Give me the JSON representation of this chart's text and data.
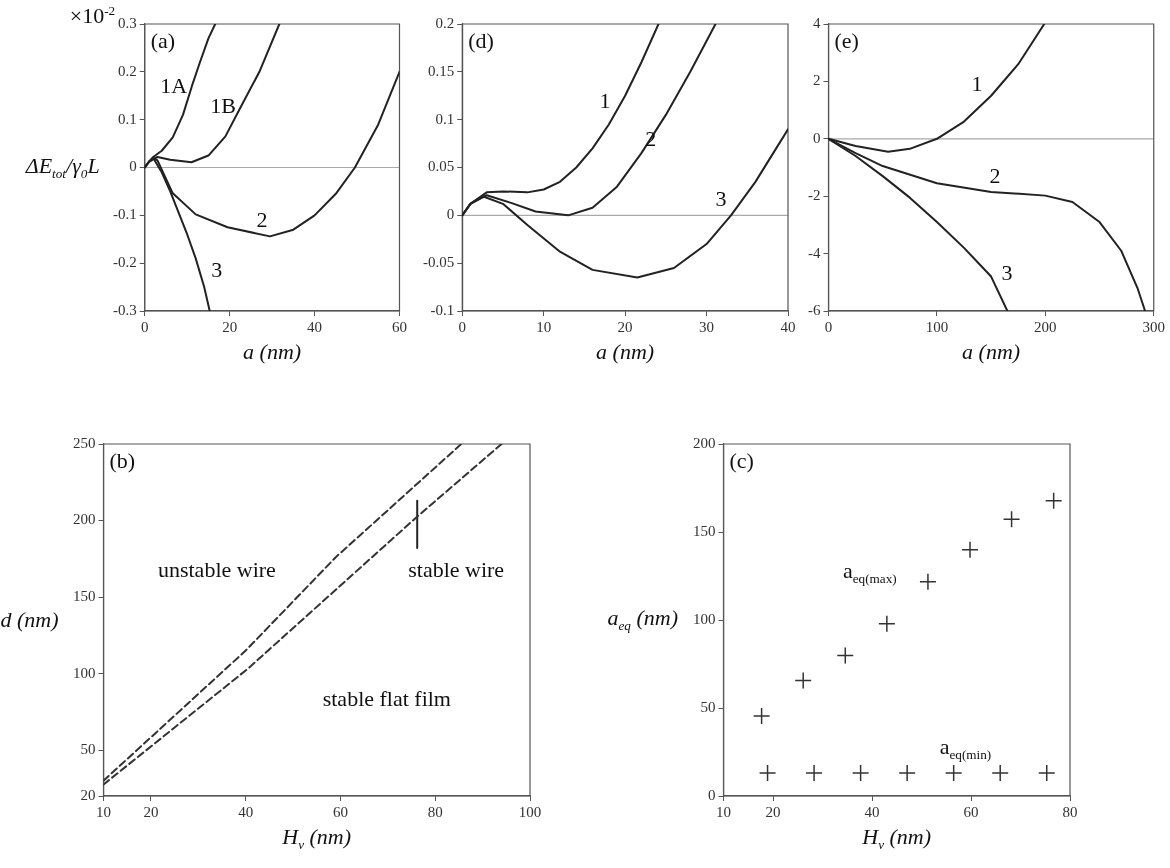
{
  "chart_data": [
    {
      "type": "line",
      "xlabel": "a (nm)",
      "ylabel": "ΔE$_{tot}$/γ$_{0}$L",
      "marker": "none",
      "xlim": [
        0,
        60
      ],
      "ylim": [
        -0.3,
        0.3
      ],
      "xticks": [
        0,
        20,
        40,
        60
      ],
      "yticks": [
        -0.3,
        -0.2,
        -0.1,
        0,
        0.1,
        0.2,
        0.3
      ],
      "series": [
        {
          "name": "1A",
          "color": "#222222",
          "x": [
            0,
            1,
            2,
            4,
            6.6,
            9,
            11.1,
            13,
            15,
            16.6
          ],
          "values": [
            0,
            0.012,
            0.022,
            0.035,
            0.063,
            0.11,
            0.17,
            0.22,
            0.27,
            0.3
          ]
        },
        {
          "name": "1B",
          "color": "#222222",
          "x": [
            0,
            1,
            3,
            6,
            11,
            15,
            19,
            22.7,
            27,
            31.7
          ],
          "values": [
            0,
            0.012,
            0.022,
            0.016,
            0.011,
            0.025,
            0.065,
            0.128,
            0.2,
            0.3
          ]
        },
        {
          "name": "2",
          "color": "#222222",
          "x": [
            0,
            1,
            2,
            3,
            6.6,
            12,
            19.5,
            29.5,
            35,
            40,
            45,
            49.5,
            55,
            60
          ],
          "values": [
            0,
            0.012,
            0.02,
            0.015,
            -0.054,
            -0.098,
            -0.125,
            -0.144,
            -0.13,
            -0.1,
            -0.055,
            0,
            0.09,
            0.2
          ]
        },
        {
          "name": "3",
          "color": "#222222",
          "x": [
            0,
            1,
            2,
            4,
            6,
            8,
            10,
            12,
            14,
            15.3
          ],
          "values": [
            0,
            0.012,
            0.02,
            -0.01,
            -0.05,
            -0.095,
            -0.14,
            -0.19,
            -0.25,
            -0.3
          ]
        }
      ],
      "ref_lines": [
        {
          "axis": "y",
          "value": 0,
          "color": "#aaaaaa"
        }
      ],
      "annotations": [
        "(a)",
        "×10$^{-2}$"
      ]
    },
    {
      "type": "line",
      "xlabel": "a (nm)",
      "marker": "none",
      "xlim": [
        0,
        40
      ],
      "ylim": [
        -0.1,
        0.2
      ],
      "xticks": [
        0,
        10,
        20,
        30,
        40
      ],
      "yticks": [
        -0.1,
        -0.05,
        0,
        0.05,
        0.1,
        0.15,
        0.2
      ],
      "series": [
        {
          "name": "1",
          "color": "#222222",
          "x": [
            0,
            1,
            3,
            5,
            8,
            10,
            12,
            14,
            16,
            18,
            20,
            22,
            24.1
          ],
          "values": [
            0,
            0.012,
            0.024,
            0.025,
            0.024,
            0.027,
            0.035,
            0.05,
            0.07,
            0.095,
            0.125,
            0.16,
            0.2
          ]
        },
        {
          "name": "2",
          "color": "#222222",
          "x": [
            0,
            1,
            3,
            6,
            9,
            13,
            16,
            19,
            22,
            25,
            28,
            31.1
          ],
          "values": [
            0,
            0.012,
            0.021,
            0.013,
            0.004,
            0,
            0.008,
            0.03,
            0.065,
            0.105,
            0.15,
            0.2
          ]
        },
        {
          "name": "3",
          "color": "#222222",
          "x": [
            0,
            1,
            2.5,
            5,
            8,
            12,
            16,
            21.5,
            26,
            30,
            33,
            36,
            40
          ],
          "values": [
            0,
            0.012,
            0.02,
            0.012,
            -0.01,
            -0.038,
            -0.057,
            -0.065,
            -0.055,
            -0.03,
            0,
            0.035,
            0.09
          ]
        }
      ],
      "ref_lines": [
        {
          "axis": "y",
          "value": 0,
          "color": "#aaaaaa"
        }
      ],
      "annotations": [
        "(d)"
      ]
    },
    {
      "type": "line",
      "xlabel": "a (nm)",
      "marker": "none",
      "xlim": [
        0,
        300
      ],
      "ylim": [
        -6,
        4
      ],
      "xticks": [
        0,
        100,
        200,
        300
      ],
      "yticks": [
        -6,
        -4,
        -2,
        0,
        2,
        4
      ],
      "series": [
        {
          "name": "1",
          "color": "#222222",
          "x": [
            0,
            25,
            55,
            75,
            100,
            125,
            150,
            175,
            199
          ],
          "values": [
            0,
            -0.25,
            -0.45,
            -0.35,
            0,
            0.6,
            1.5,
            2.6,
            4
          ]
        },
        {
          "name": "2",
          "color": "#222222",
          "x": [
            0,
            25,
            50,
            100,
            150,
            200,
            225,
            250,
            270,
            285,
            292
          ],
          "values": [
            0,
            -0.5,
            -0.95,
            -1.55,
            -1.85,
            -1.98,
            -2.2,
            -2.9,
            -3.9,
            -5.2,
            -6
          ]
        },
        {
          "name": "3",
          "color": "#222222",
          "x": [
            0,
            25,
            50,
            75,
            100,
            125,
            150,
            165
          ],
          "values": [
            0,
            -0.6,
            -1.3,
            -2.05,
            -2.9,
            -3.8,
            -4.8,
            -6
          ]
        }
      ],
      "ref_lines": [
        {
          "axis": "y",
          "value": 0,
          "color": "#aaaaaa"
        }
      ],
      "annotations": [
        "(e)"
      ]
    },
    {
      "type": "line",
      "xlabel": "H$_{v}$ (nm)",
      "ylabel": "d (nm)",
      "marker": "none",
      "xlim": [
        10,
        100
      ],
      "ylim": [
        20,
        250
      ],
      "xticks": [
        10,
        20,
        40,
        60,
        80,
        100
      ],
      "yticks": [
        20,
        50,
        100,
        150,
        200,
        250
      ],
      "series": [
        {
          "color": "#333333",
          "line_style": "dashed",
          "x": [
            10,
            40,
            59,
            85.5
          ],
          "values": [
            30,
            115,
            176,
            250
          ]
        },
        {
          "color": "#333333",
          "line_style": "dashed",
          "x": [
            10,
            40.4,
            76,
            94
          ],
          "values": [
            27.5,
            103,
            202,
            250
          ]
        },
        {
          "color": "#222222",
          "line_style": "solid",
          "x": [
            76.2,
            76.2
          ],
          "values": [
            182,
            213
          ]
        }
      ],
      "annotations": [
        "(b)",
        "unstable wire",
        "stable wire",
        "stable flat film"
      ]
    },
    {
      "type": "scatter",
      "xlabel": "H$_{v}$ (nm)",
      "ylabel": "a$_{eq}$ (nm)",
      "marker": "cross",
      "xlim": [
        10,
        80
      ],
      "ylim": [
        0,
        200
      ],
      "xticks": [
        10,
        20,
        40,
        60,
        80
      ],
      "yticks": [
        0,
        50,
        100,
        150,
        200
      ],
      "series": [
        {
          "name": "a$_{eq(max)}$",
          "color": "#333333",
          "x": [
            17.7,
            26.1,
            34.6,
            43,
            51.3,
            59.8,
            68.2,
            76.7
          ],
          "values": [
            45.5,
            65.6,
            79.8,
            97.8,
            121.7,
            139.9,
            157.2,
            167.8
          ]
        },
        {
          "name": "a$_{eq(min)}$",
          "color": "#333333",
          "x": [
            18.9,
            28.3,
            37.7,
            47.1,
            56.5,
            65.9,
            75.3
          ],
          "values": [
            13,
            13,
            13,
            13,
            13,
            13,
            13
          ]
        }
      ],
      "annotations": [
        "(c)"
      ]
    }
  ]
}
